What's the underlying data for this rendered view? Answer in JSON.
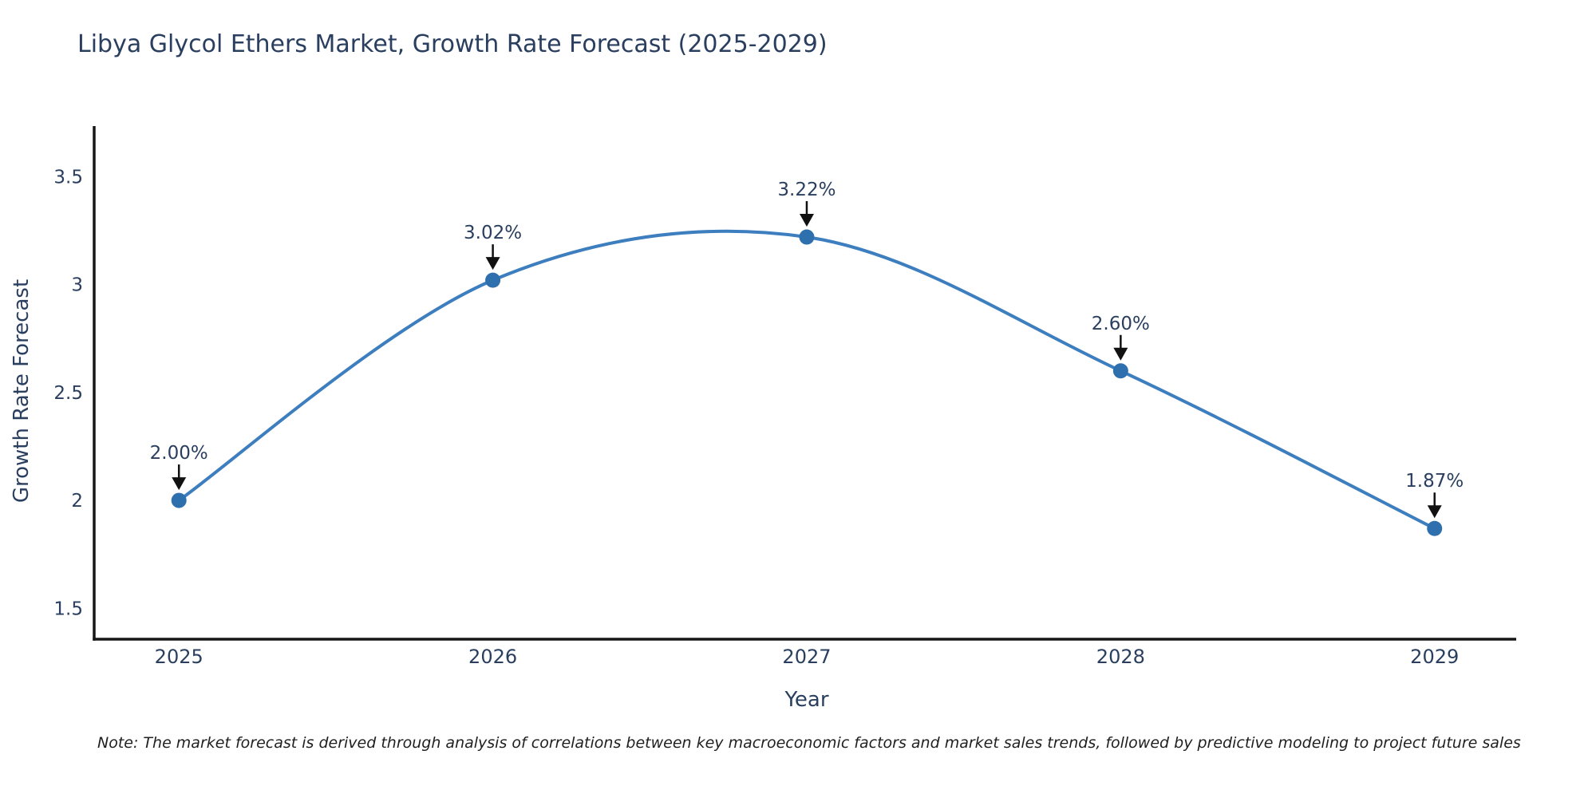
{
  "page": {
    "background": "#ffffff"
  },
  "chart_data": {
    "type": "line",
    "title": "Libya Glycol Ethers Market, Growth Rate Forecast (2025-2029)",
    "xlabel": "Year",
    "ylabel": "Growth Rate Forecast",
    "categories": [
      2025,
      2026,
      2027,
      2028,
      2029
    ],
    "values": [
      2.0,
      3.02,
      3.22,
      2.6,
      1.87
    ],
    "point_labels": [
      "2.00%",
      "3.02%",
      "3.22%",
      "2.60%",
      "1.87%"
    ],
    "x_tick_labels": [
      "2025",
      "2026",
      "2027",
      "2028",
      "2029"
    ],
    "y_ticks": [
      1.5,
      2,
      2.5,
      3,
      3.5
    ],
    "y_tick_labels": [
      "1.5",
      "2",
      "2.5",
      "3",
      "3.5"
    ],
    "x_range": [
      2024.73,
      2029.26
    ],
    "y_range": [
      1.357,
      3.734
    ],
    "grid": false,
    "legend": "none",
    "line_shape": "spline",
    "annotation_style": "value-label-with-down-arrow",
    "colors": {
      "line": "#3d7ebf",
      "marker": "#2e6fae",
      "axis": "#161616",
      "arrow": "#111111",
      "text": "#2a3f5f"
    }
  },
  "note": {
    "text": "Note: The market forecast is derived through analysis of correlations between key macroeconomic factors and market sales trends, followed by predictive modeling to project future sales"
  }
}
